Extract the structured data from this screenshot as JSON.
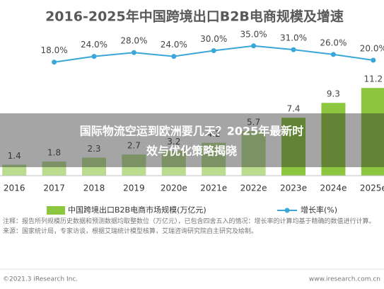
{
  "chart_data": {
    "type": "bar",
    "title": "2016-2025年中国跨境出口B2B电商规模及增速",
    "categories": [
      "2016",
      "2017",
      "2018",
      "2019",
      "2020e",
      "2021e",
      "2022e",
      "2023e",
      "2024e",
      "2025e"
    ],
    "series": [
      {
        "name": "中国跨境出口B2B电商市场规模(万亿元)",
        "type": "bar",
        "color": "#b9dc8f",
        "colors": [
          "#b9dc8f",
          "#b9dc8f",
          "#b9dc8f",
          "#b9dc8f",
          "#b9dc8f",
          "#b9dc8f",
          "#b9dc8f",
          "#8dc63f",
          "#8dc63f",
          "#8dc63f"
        ],
        "values": [
          1.4,
          1.8,
          2.3,
          2.7,
          3.2,
          4.2,
          5.7,
          7.4,
          9.3,
          11.2
        ]
      },
      {
        "name": "增长率(%)",
        "type": "line",
        "axis": "y2",
        "color": "#3aa7d8",
        "values": [
          null,
          18,
          24,
          28,
          24,
          30,
          35,
          31,
          26,
          20
        ],
        "value_labels": [
          null,
          "18.0%",
          "24.0%",
          "28.0%",
          "24.0%",
          "30.0%",
          "35.0%",
          "31.0%",
          "26.0%",
          "20.0%"
        ]
      }
    ],
    "ylim": [
      0,
      20
    ],
    "y2lim": [
      0,
      40
    ],
    "notes": [
      "注释：报告所列规模历史数据和预测数据均取整数位（万亿元），已包含四舍五入的情况：增长率的计算均基于精确的数值进行计算。",
      "来源：国家统计局，专家访谈，根据艾瑞统计模型核算，艾瑞咨询研究院自主研究及绘制。"
    ],
    "footer_left": "©2021.3 iResearch Inc.",
    "footer_right": "www.iresearch.com.cn",
    "banner": [
      "国际物流空运到欧洲要几天？2025年最新时",
      "效与优化策略揭晓"
    ]
  }
}
